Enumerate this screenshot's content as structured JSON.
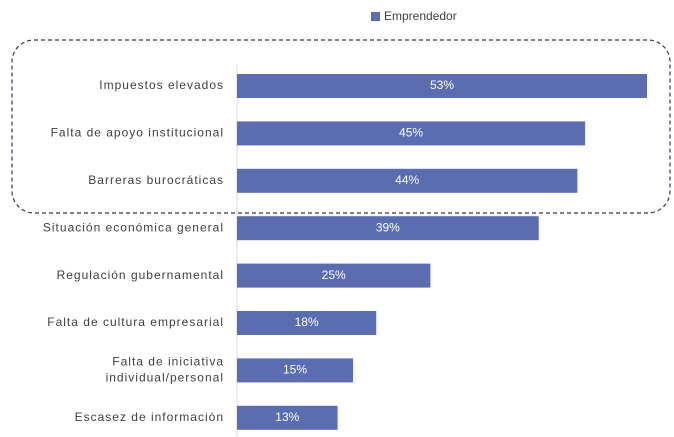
{
  "chart_data": {
    "type": "bar",
    "orientation": "horizontal",
    "categories": [
      "Impuestos elevados",
      "Falta de apoyo institucional",
      "Barreras burocráticas",
      "Situación económica general",
      "Regulación gubernamental",
      "Falta de cultura empresarial",
      "Falta de iniciativa\nindividual/personal",
      "Escasez de información"
    ],
    "series": [
      {
        "name": "Emprendedor",
        "color": "#5b6db0",
        "values": [
          53,
          45,
          44,
          39,
          25,
          18,
          15,
          13
        ],
        "value_labels": [
          "53%",
          "45%",
          "44%",
          "39%",
          "25%",
          "18%",
          "15%",
          "13%"
        ]
      }
    ],
    "legend": "top"
  }
}
